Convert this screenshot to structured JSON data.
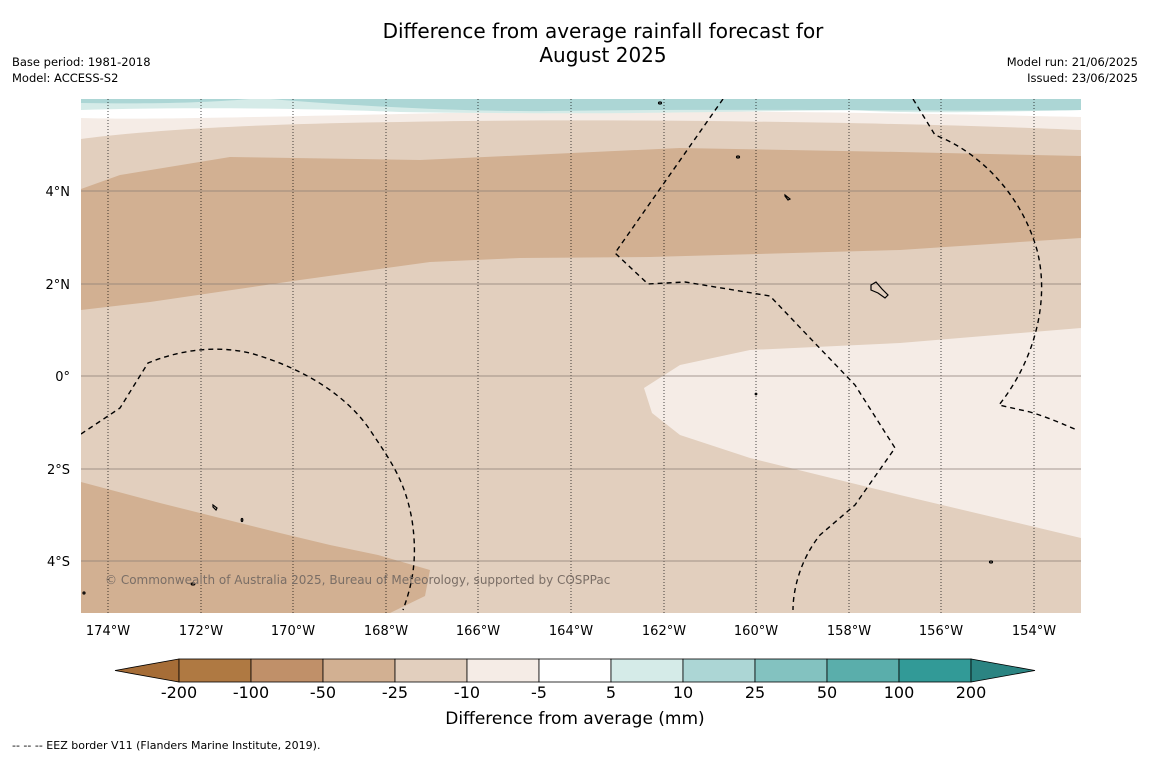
{
  "title_line1": "Difference from average rainfall forecast for",
  "title_line2": "August 2025",
  "meta": {
    "base_period": "Base period: 1981-2018",
    "model": "Model: ACCESS-S2",
    "model_run": "Model run: 21/06/2025",
    "issued": "Issued: 23/06/2025"
  },
  "copyright": "© Commonwealth of Australia 2025, Bureau of Meteorology, supported by COSPPac",
  "lat_labels": [
    "4°N",
    "2°N",
    "0°",
    "2°S",
    "4°S"
  ],
  "lon_labels": [
    "174°W",
    "172°W",
    "170°W",
    "168°W",
    "166°W",
    "164°W",
    "162°W",
    "160°W",
    "158°W",
    "156°W",
    "154°W"
  ],
  "colorbar": {
    "ticks": [
      "-200",
      "-100",
      "-50",
      "-25",
      "-10",
      "-5",
      "5",
      "10",
      "25",
      "50",
      "100",
      "200"
    ],
    "colors": [
      "#a66d37",
      "#af7942",
      "#c09069",
      "#d2b092",
      "#e2cfbe",
      "#f5ece6",
      "#ffffff",
      "#d5ebe8",
      "#acd6d5",
      "#83c2c0",
      "#5aaeab",
      "#329a97",
      "#2b8482"
    ],
    "label": "Difference from average (mm)"
  },
  "footer": "--  --  -- EEZ border V11 (Flanders Marine Institute, 2019)."
}
